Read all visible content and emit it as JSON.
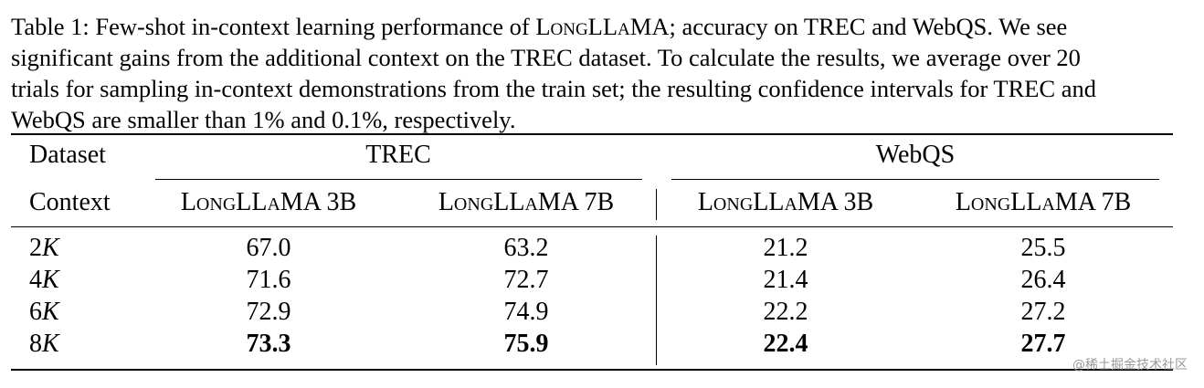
{
  "caption": {
    "label": "Table 1:",
    "line1_pre": "Few-shot in-context learning performance of ",
    "line1_model": "LongLLaMA",
    "line1_post": "; accuracy on TREC and WebQS. We see",
    "line2": "significant gains from the additional context on the TREC dataset. To calculate the results, we average over 20",
    "line3": "trials for sampling in-context demonstrations from the train set; the resulting confidence intervals for TREC and",
    "line4": "WebQS are smaller than 1% and 0.1%, respectively."
  },
  "table": {
    "header1": {
      "dataset_label": "Dataset",
      "group_trec": "TREC",
      "group_webqs": "WebQS"
    },
    "header2": {
      "context_label": "Context",
      "cols": [
        "LongLLaMA 3B",
        "LongLLaMA 7B",
        "LongLLaMA 3B",
        "LongLLaMA 7B"
      ]
    },
    "rows": [
      {
        "context_num": "2",
        "context_unit": "K",
        "values": [
          "67.0",
          "63.2",
          "21.2",
          "25.5"
        ],
        "bold": false
      },
      {
        "context_num": "4",
        "context_unit": "K",
        "values": [
          "71.6",
          "72.7",
          "21.4",
          "26.4"
        ],
        "bold": false
      },
      {
        "context_num": "6",
        "context_unit": "K",
        "values": [
          "72.9",
          "74.9",
          "22.2",
          "27.2"
        ],
        "bold": false
      },
      {
        "context_num": "8",
        "context_unit": "K",
        "values": [
          "73.3",
          "75.9",
          "22.4",
          "27.7"
        ],
        "bold": true
      }
    ]
  },
  "watermark": "@稀土掘金技术社区"
}
